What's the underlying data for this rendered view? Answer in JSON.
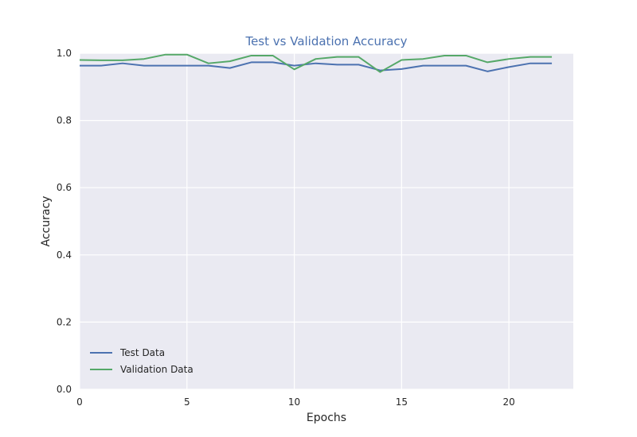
{
  "chart_data": {
    "type": "line",
    "title": "Test vs Validation Accuracy",
    "xlabel": "Epochs",
    "ylabel": "Accuracy",
    "xlim": [
      0,
      23
    ],
    "ylim": [
      0.0,
      1.0
    ],
    "x_ticks": [
      0,
      5,
      10,
      15,
      20
    ],
    "y_ticks": [
      0.0,
      0.2,
      0.4,
      0.6,
      0.8,
      1.0
    ],
    "x_tick_labels": [
      "0",
      "5",
      "10",
      "15",
      "20"
    ],
    "y_tick_labels": [
      "0.0",
      "0.2",
      "0.4",
      "0.6",
      "0.8",
      "1.0"
    ],
    "grid": true,
    "legend_position": "lower-left",
    "x": [
      0,
      1,
      2,
      3,
      4,
      5,
      6,
      7,
      8,
      9,
      10,
      11,
      12,
      13,
      14,
      15,
      16,
      17,
      18,
      19,
      20,
      21,
      22
    ],
    "series": [
      {
        "name": "Test Data",
        "color": "#4c72b0",
        "values": [
          0.963,
          0.963,
          0.97,
          0.963,
          0.963,
          0.963,
          0.963,
          0.956,
          0.973,
          0.973,
          0.963,
          0.97,
          0.966,
          0.966,
          0.949,
          0.953,
          0.963,
          0.963,
          0.963,
          0.946,
          0.959,
          0.97,
          0.97
        ]
      },
      {
        "name": "Validation Data",
        "color": "#55a868",
        "values": [
          0.98,
          0.979,
          0.979,
          0.983,
          0.996,
          0.996,
          0.97,
          0.976,
          0.993,
          0.993,
          0.952,
          0.983,
          0.989,
          0.989,
          0.944,
          0.98,
          0.983,
          0.993,
          0.993,
          0.973,
          0.983,
          0.989,
          0.989
        ]
      }
    ],
    "colors": {
      "plot_background": "#eaeaf2",
      "grid": "#ffffff",
      "title": "#4c72b0"
    }
  }
}
